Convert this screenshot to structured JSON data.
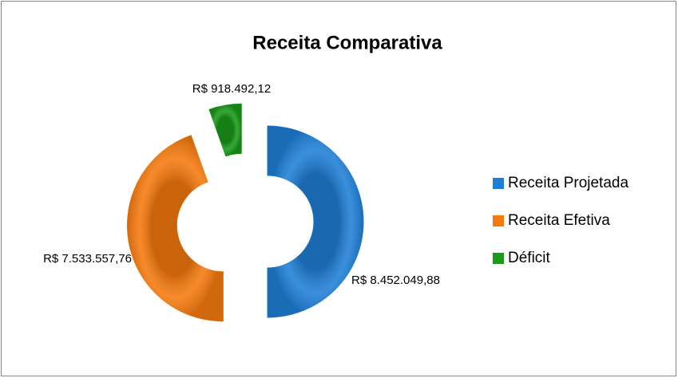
{
  "chart_data": {
    "type": "doughnut",
    "title": "Receita Comparativa",
    "categories": [
      "Receita Projetada",
      "Receita Efetiva",
      "Déficit"
    ],
    "values": [
      8452049.88,
      7533557.76,
      918492.12
    ],
    "value_labels": [
      "R$ 8.452.049,88",
      "R$ 7.533.557,76",
      "R$ 918.492,12"
    ],
    "colors": [
      "#1f7fd6",
      "#f57a0e",
      "#1a9a1a"
    ],
    "legend": "right"
  }
}
